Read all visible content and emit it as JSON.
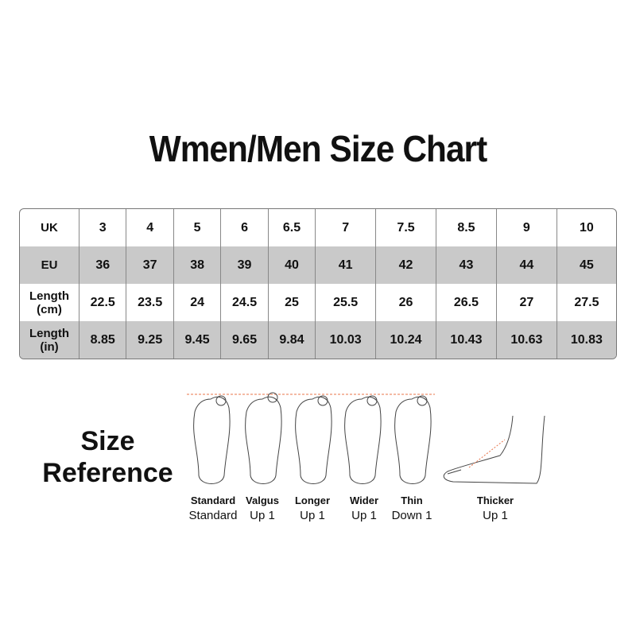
{
  "title": "Wmen/Men Size Chart",
  "table": {
    "rows": [
      {
        "label": "UK",
        "values": [
          "3",
          "4",
          "5",
          "6",
          "6.5",
          "7",
          "7.5",
          "8.5",
          "9",
          "10"
        ]
      },
      {
        "label": "EU",
        "values": [
          "36",
          "37",
          "38",
          "39",
          "40",
          "41",
          "42",
          "43",
          "44",
          "45"
        ]
      },
      {
        "label": "Length (cm)",
        "values": [
          "22.5",
          "23.5",
          "24",
          "24.5",
          "25",
          "25.5",
          "26",
          "26.5",
          "27",
          "27.5"
        ]
      },
      {
        "label": "Length (in)",
        "values": [
          "8.85",
          "9.25",
          "9.45",
          "9.65",
          "9.84",
          "10.03",
          "10.24",
          "10.43",
          "10.63",
          "10.83"
        ]
      }
    ]
  },
  "reference": {
    "title_line1": "Size",
    "title_line2": "Reference",
    "items": [
      {
        "type": "Standard",
        "advice": "Standard"
      },
      {
        "type": "Valgus",
        "advice": "Up 1"
      },
      {
        "type": "Longer",
        "advice": "Up 1"
      },
      {
        "type": "Wider",
        "advice": "Up 1"
      },
      {
        "type": "Thin",
        "advice": "Down 1"
      },
      {
        "type": "Thicker",
        "advice": "Up 1"
      }
    ],
    "guide_line_color": "#e8744a"
  }
}
